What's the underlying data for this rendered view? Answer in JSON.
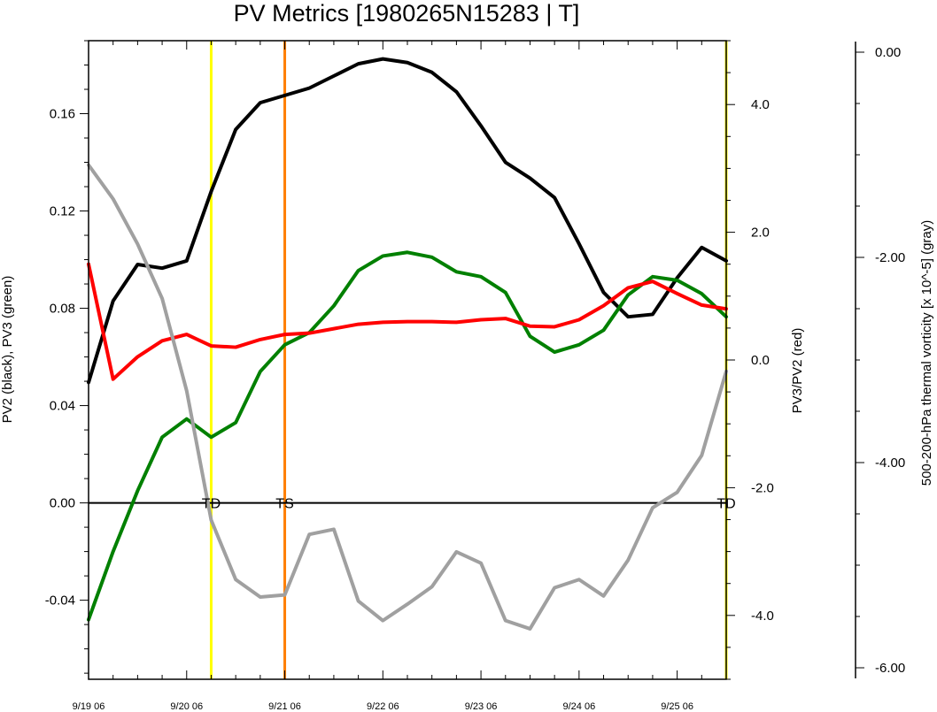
{
  "chart_data": {
    "type": "line",
    "title": "PV Metrics [1980265N15283 | T]",
    "x_tick_labels": [
      "9/19 06",
      "9/20 06",
      "9/21 06",
      "9/22 06",
      "9/23 06",
      "9/24 06",
      "9/25 06"
    ],
    "x_range": [
      0,
      26
    ],
    "left_axis": {
      "label": "PV2 (black), PV3 (green)",
      "range": [
        -0.0725,
        0.19
      ],
      "tick_values": [
        -0.04,
        0.0,
        0.04,
        0.08,
        0.12,
        0.16
      ],
      "tick_labels": [
        "-0.04",
        "0.00",
        "0.04",
        "0.08",
        "0.12",
        "0.16"
      ]
    },
    "right_axis": {
      "label": "PV3/PV2 (red)",
      "range": [
        -5.0,
        5.0
      ],
      "tick_values": [
        -4.0,
        -2.0,
        0.0,
        2.0,
        4.0
      ],
      "tick_labels": [
        "-4.0",
        "-2.0",
        "0.0",
        "2.0",
        "4.0"
      ]
    },
    "far_right_axis": {
      "label": "500-200-hPa thermal vorticity [x 10^-5] (gray)",
      "range": [
        -6.0,
        0.0
      ],
      "tick_values": [
        0.0,
        -2.0,
        -4.0,
        -6.0
      ],
      "tick_labels": [
        "0.00",
        "-2.00",
        "-4.00",
        "-6.00"
      ]
    },
    "series": [
      {
        "color": "#000000",
        "axis": "left",
        "values": [
          0.0495,
          0.083,
          0.098,
          0.0965,
          0.0995,
          0.128,
          0.1535,
          0.1645,
          0.1675,
          0.1705,
          0.1755,
          0.1805,
          0.1825,
          0.181,
          0.177,
          0.169,
          0.155,
          0.14,
          0.1335,
          0.1255,
          0.1065,
          0.0865,
          0.0765,
          0.0775,
          0.0925,
          0.105,
          0.0995
        ]
      },
      {
        "color": "#008000",
        "axis": "left",
        "values": [
          -0.048,
          -0.02,
          0.005,
          0.027,
          0.0345,
          0.027,
          0.033,
          0.054,
          0.065,
          0.07,
          0.081,
          0.0955,
          0.1015,
          0.103,
          0.101,
          0.095,
          0.093,
          0.0865,
          0.0685,
          0.062,
          0.065,
          0.071,
          0.0855,
          0.093,
          0.0915,
          0.086,
          0.0765
        ]
      },
      {
        "color": "#ff0000",
        "axis": "right",
        "values": [
          1.5,
          -0.3,
          0.05,
          0.3,
          0.4,
          0.22,
          0.2,
          0.32,
          0.4,
          0.42,
          0.49,
          0.56,
          0.59,
          0.6,
          0.6,
          0.59,
          0.63,
          0.65,
          0.53,
          0.52,
          0.63,
          0.85,
          1.13,
          1.23,
          1.04,
          0.86,
          0.8
        ]
      },
      {
        "color": "#a0a0a0",
        "axis": "far_right",
        "values": [
          -1.1,
          -1.43,
          -1.87,
          -2.4,
          -3.3,
          -4.56,
          -5.14,
          -5.31,
          -5.29,
          -4.7,
          -4.65,
          -5.35,
          -5.54,
          -5.38,
          -5.21,
          -4.87,
          -4.98,
          -5.54,
          -5.62,
          -5.22,
          -5.14,
          -5.3,
          -4.95,
          -4.44,
          -4.29,
          -3.93,
          -3.11
        ]
      }
    ],
    "vertical_markers": [
      {
        "x": 5,
        "color": "#ffff00",
        "label": "TD"
      },
      {
        "x": 8,
        "color": "#ff7f00",
        "label": "TS"
      },
      {
        "x": 26,
        "color": "#ffff00",
        "label": "TD"
      }
    ],
    "zero_line": true,
    "grid": false,
    "legend": "none"
  }
}
